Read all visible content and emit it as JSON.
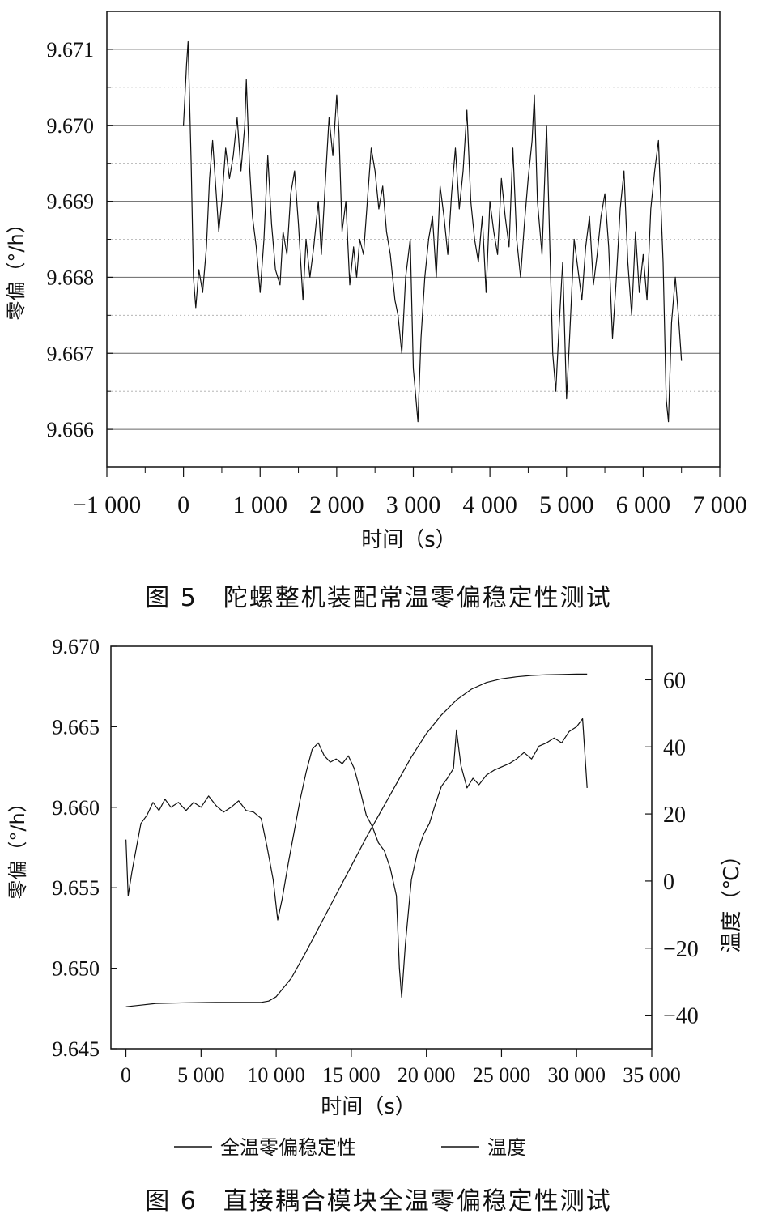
{
  "chart_data": [
    {
      "type": "line",
      "caption": "图 5　陀螺整机装配常温零偏稳定性测试",
      "xlabel": "时间（s）",
      "ylabel": "零偏（°/h）",
      "xlim": [
        -1000,
        7000
      ],
      "ylim": [
        9.6655,
        9.6715
      ],
      "x_tick_labels": [
        "−1 000",
        "0",
        "1 000",
        "2 000",
        "3 000",
        "4 000",
        "5 000",
        "6 000",
        "7 000"
      ],
      "y_tick_labels": [
        "9.666",
        "9.667",
        "9.668",
        "9.669",
        "9.670",
        "9.671"
      ],
      "grid": true,
      "series": [
        {
          "points": [
            [
              0,
              9.67
            ],
            [
              40,
              9.6708
            ],
            [
              60,
              9.6711
            ],
            [
              100,
              9.6695
            ],
            [
              130,
              9.668
            ],
            [
              160,
              9.6676
            ],
            [
              200,
              9.6681
            ],
            [
              250,
              9.6678
            ],
            [
              300,
              9.6684
            ],
            [
              340,
              9.6693
            ],
            [
              380,
              9.6698
            ],
            [
              420,
              9.6692
            ],
            [
              460,
              9.6686
            ],
            [
              500,
              9.669
            ],
            [
              550,
              9.6697
            ],
            [
              600,
              9.6693
            ],
            [
              650,
              9.6696
            ],
            [
              700,
              9.6701
            ],
            [
              750,
              9.6694
            ],
            [
              800,
              9.67
            ],
            [
              820,
              9.6706
            ],
            [
              860,
              9.6695
            ],
            [
              900,
              9.6688
            ],
            [
              950,
              9.6684
            ],
            [
              1000,
              9.6678
            ],
            [
              1050,
              9.6685
            ],
            [
              1100,
              9.6696
            ],
            [
              1150,
              9.6687
            ],
            [
              1200,
              9.6681
            ],
            [
              1260,
              9.6679
            ],
            [
              1300,
              9.6686
            ],
            [
              1350,
              9.6683
            ],
            [
              1400,
              9.6691
            ],
            [
              1450,
              9.6694
            ],
            [
              1500,
              9.6687
            ],
            [
              1560,
              9.6677
            ],
            [
              1600,
              9.6685
            ],
            [
              1650,
              9.668
            ],
            [
              1700,
              9.6684
            ],
            [
              1760,
              9.669
            ],
            [
              1800,
              9.6683
            ],
            [
              1860,
              9.6694
            ],
            [
              1900,
              9.6701
            ],
            [
              1950,
              9.6696
            ],
            [
              2000,
              9.6704
            ],
            [
              2030,
              9.6699
            ],
            [
              2070,
              9.6686
            ],
            [
              2120,
              9.669
            ],
            [
              2170,
              9.6679
            ],
            [
              2220,
              9.6684
            ],
            [
              2260,
              9.668
            ],
            [
              2300,
              9.6685
            ],
            [
              2350,
              9.6683
            ],
            [
              2400,
              9.669
            ],
            [
              2450,
              9.6697
            ],
            [
              2500,
              9.6694
            ],
            [
              2550,
              9.6689
            ],
            [
              2600,
              9.6692
            ],
            [
              2650,
              9.6686
            ],
            [
              2700,
              9.6683
            ],
            [
              2760,
              9.6677
            ],
            [
              2800,
              9.6675
            ],
            [
              2850,
              9.667
            ],
            [
              2900,
              9.668
            ],
            [
              2960,
              9.6685
            ],
            [
              3000,
              9.6668
            ],
            [
              3060,
              9.6661
            ],
            [
              3100,
              9.6672
            ],
            [
              3150,
              9.668
            ],
            [
              3200,
              9.6685
            ],
            [
              3250,
              9.6688
            ],
            [
              3300,
              9.668
            ],
            [
              3350,
              9.6692
            ],
            [
              3400,
              9.6688
            ],
            [
              3450,
              9.6683
            ],
            [
              3500,
              9.6691
            ],
            [
              3550,
              9.6697
            ],
            [
              3600,
              9.6689
            ],
            [
              3650,
              9.6694
            ],
            [
              3700,
              9.6702
            ],
            [
              3750,
              9.669
            ],
            [
              3800,
              9.6685
            ],
            [
              3850,
              9.6682
            ],
            [
              3900,
              9.6688
            ],
            [
              3950,
              9.6678
            ],
            [
              4000,
              9.669
            ],
            [
              4050,
              9.6686
            ],
            [
              4100,
              9.6683
            ],
            [
              4150,
              9.6693
            ],
            [
              4200,
              9.6688
            ],
            [
              4250,
              9.6684
            ],
            [
              4300,
              9.6697
            ],
            [
              4350,
              9.6685
            ],
            [
              4400,
              9.668
            ],
            [
              4450,
              9.6687
            ],
            [
              4500,
              9.6693
            ],
            [
              4550,
              9.6698
            ],
            [
              4580,
              9.6704
            ],
            [
              4620,
              9.669
            ],
            [
              4680,
              9.6683
            ],
            [
              4740,
              9.67
            ],
            [
              4780,
              9.6685
            ],
            [
              4820,
              9.667
            ],
            [
              4860,
              9.6665
            ],
            [
              4900,
              9.6673
            ],
            [
              4950,
              9.6682
            ],
            [
              5000,
              9.6664
            ],
            [
              5040,
              9.6672
            ],
            [
              5100,
              9.6685
            ],
            [
              5150,
              9.6681
            ],
            [
              5200,
              9.6677
            ],
            [
              5250,
              9.6684
            ],
            [
              5300,
              9.6688
            ],
            [
              5350,
              9.6679
            ],
            [
              5400,
              9.6683
            ],
            [
              5450,
              9.6688
            ],
            [
              5500,
              9.6691
            ],
            [
              5550,
              9.6684
            ],
            [
              5600,
              9.6672
            ],
            [
              5650,
              9.668
            ],
            [
              5700,
              9.6689
            ],
            [
              5750,
              9.6694
            ],
            [
              5800,
              9.6682
            ],
            [
              5850,
              9.6675
            ],
            [
              5900,
              9.6686
            ],
            [
              5950,
              9.6678
            ],
            [
              6000,
              9.6683
            ],
            [
              6050,
              9.6677
            ],
            [
              6100,
              9.6689
            ],
            [
              6150,
              9.6694
            ],
            [
              6200,
              9.6698
            ],
            [
              6230,
              9.669
            ],
            [
              6260,
              9.6682
            ],
            [
              6300,
              9.6664
            ],
            [
              6330,
              9.6661
            ],
            [
              6370,
              9.6674
            ],
            [
              6420,
              9.668
            ],
            [
              6460,
              9.6675
            ],
            [
              6500,
              9.6669
            ]
          ]
        }
      ]
    },
    {
      "type": "line",
      "caption": "图 6　直接耦合模块全温零偏稳定性测试",
      "xlabel": "时间（s）",
      "ylabel": "零偏（°/h）",
      "y2label": "温度（℃）",
      "xlim": [
        -1000,
        35000
      ],
      "ylim": [
        9.645,
        9.67
      ],
      "y2lim": [
        -50,
        70
      ],
      "x_tick_labels": [
        "0",
        "5 000",
        "10 000",
        "15 000",
        "20 000",
        "25 000",
        "30 000",
        "35 000"
      ],
      "y_tick_labels": [
        "9.645",
        "9.650",
        "9.655",
        "9.660",
        "9.665",
        "9.670"
      ],
      "y2_tick_labels": [
        "−40",
        "−20",
        "0",
        "20",
        "40",
        "60"
      ],
      "grid": false,
      "legend": [
        "全温零偏稳定性",
        "温度"
      ],
      "legend_placement": "bottom",
      "series": [
        {
          "name": "全温零偏稳定性",
          "axis": "left",
          "points": [
            [
              0,
              9.658
            ],
            [
              150,
              9.6545
            ],
            [
              400,
              9.656
            ],
            [
              700,
              9.6575
            ],
            [
              1000,
              9.659
            ],
            [
              1400,
              9.6595
            ],
            [
              1800,
              9.6603
            ],
            [
              2200,
              9.6598
            ],
            [
              2600,
              9.6605
            ],
            [
              3000,
              9.66
            ],
            [
              3500,
              9.6603
            ],
            [
              4000,
              9.6598
            ],
            [
              4500,
              9.6603
            ],
            [
              5000,
              9.66
            ],
            [
              5500,
              9.6607
            ],
            [
              6000,
              9.6601
            ],
            [
              6500,
              9.6597
            ],
            [
              7000,
              9.66
            ],
            [
              7500,
              9.6604
            ],
            [
              8000,
              9.6598
            ],
            [
              8500,
              9.6597
            ],
            [
              9000,
              9.6593
            ],
            [
              9400,
              9.6575
            ],
            [
              9800,
              9.6555
            ],
            [
              10100,
              9.653
            ],
            [
              10400,
              9.6543
            ],
            [
              10800,
              9.6565
            ],
            [
              11200,
              9.6585
            ],
            [
              11600,
              9.6605
            ],
            [
              12000,
              9.6622
            ],
            [
              12400,
              9.6636
            ],
            [
              12800,
              9.664
            ],
            [
              13200,
              9.6632
            ],
            [
              13600,
              9.6628
            ],
            [
              14000,
              9.663
            ],
            [
              14400,
              9.6627
            ],
            [
              14800,
              9.6632
            ],
            [
              15200,
              9.6624
            ],
            [
              15600,
              9.661
            ],
            [
              16000,
              9.6595
            ],
            [
              16400,
              9.6588
            ],
            [
              16800,
              9.6578
            ],
            [
              17200,
              9.6573
            ],
            [
              17600,
              9.6562
            ],
            [
              18000,
              9.6545
            ],
            [
              18200,
              9.65
            ],
            [
              18350,
              9.6482
            ],
            [
              18600,
              9.6515
            ],
            [
              19000,
              9.6555
            ],
            [
              19400,
              9.6572
            ],
            [
              19800,
              9.6583
            ],
            [
              20200,
              9.659
            ],
            [
              20600,
              9.6602
            ],
            [
              21000,
              9.6613
            ],
            [
              21400,
              9.6618
            ],
            [
              21800,
              9.6624
            ],
            [
              22000,
              9.6648
            ],
            [
              22300,
              9.6626
            ],
            [
              22700,
              9.6612
            ],
            [
              23100,
              9.6618
            ],
            [
              23500,
              9.6614
            ],
            [
              24000,
              9.662
            ],
            [
              24500,
              9.6623
            ],
            [
              25000,
              9.6625
            ],
            [
              25500,
              9.6627
            ],
            [
              26000,
              9.663
            ],
            [
              26500,
              9.6634
            ],
            [
              27000,
              9.663
            ],
            [
              27500,
              9.6638
            ],
            [
              28000,
              9.664
            ],
            [
              28500,
              9.6643
            ],
            [
              29000,
              9.664
            ],
            [
              29500,
              9.6647
            ],
            [
              30000,
              9.665
            ],
            [
              30400,
              9.6655
            ],
            [
              30700,
              9.6612
            ]
          ]
        },
        {
          "name": "温度",
          "axis": "right",
          "points": [
            [
              0,
              -37.5
            ],
            [
              1000,
              -37
            ],
            [
              2000,
              -36.5
            ],
            [
              4000,
              -36.3
            ],
            [
              6000,
              -36.2
            ],
            [
              8000,
              -36.2
            ],
            [
              9000,
              -36.2
            ],
            [
              9500,
              -35.8
            ],
            [
              10000,
              -34.5
            ],
            [
              11000,
              -29
            ],
            [
              12000,
              -21
            ],
            [
              13000,
              -12.5
            ],
            [
              14000,
              -4
            ],
            [
              15000,
              4.5
            ],
            [
              16000,
              13
            ],
            [
              17000,
              21
            ],
            [
              18000,
              29
            ],
            [
              19000,
              37
            ],
            [
              20000,
              44
            ],
            [
              21000,
              49.5
            ],
            [
              22000,
              54
            ],
            [
              23000,
              57.2
            ],
            [
              24000,
              59.2
            ],
            [
              25000,
              60.3
            ],
            [
              26000,
              60.9
            ],
            [
              27000,
              61.3
            ],
            [
              28000,
              61.5
            ],
            [
              29000,
              61.6
            ],
            [
              30000,
              61.7
            ],
            [
              30700,
              61.7
            ]
          ]
        }
      ]
    }
  ]
}
